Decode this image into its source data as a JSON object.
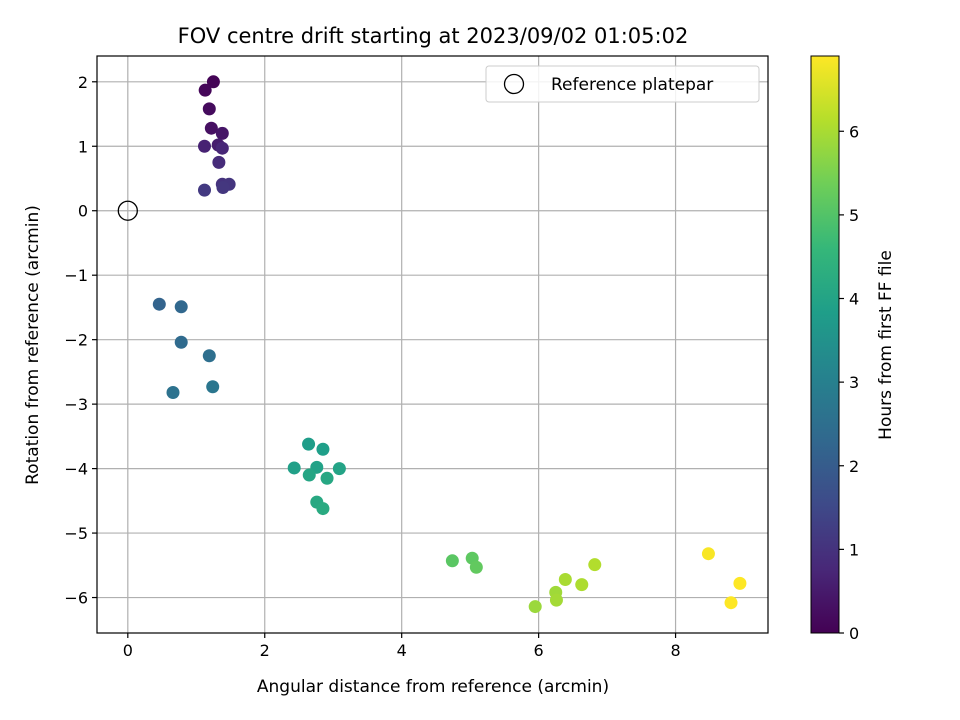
{
  "chart_data": {
    "type": "scatter",
    "title": "FOV centre drift starting at 2023/09/02 01:05:02",
    "xlabel": "Angular distance from reference (arcmin)",
    "ylabel": "Rotation from reference (arcmin)",
    "xlim": [
      -0.45,
      9.35
    ],
    "ylim": [
      -6.55,
      2.4
    ],
    "xticks": [
      0,
      2,
      4,
      6,
      8
    ],
    "yticks": [
      -6,
      -5,
      -4,
      -3,
      -2,
      -1,
      0,
      1,
      2
    ],
    "grid": true,
    "legend": {
      "position": "top-right",
      "entries": [
        "Reference platepar"
      ]
    },
    "reference_point": {
      "x": 0,
      "y": 0
    },
    "colorbar": {
      "label": "Hours from first FF file",
      "range": [
        0,
        6.9
      ],
      "ticks": [
        0,
        1,
        2,
        3,
        4,
        5,
        6
      ],
      "colormap": "viridis"
    },
    "points": [
      {
        "x": 1.25,
        "y": 2.0,
        "t": 0.05
      },
      {
        "x": 1.13,
        "y": 1.87,
        "t": 0.1
      },
      {
        "x": 1.19,
        "y": 1.58,
        "t": 0.2
      },
      {
        "x": 1.22,
        "y": 1.28,
        "t": 0.3
      },
      {
        "x": 1.38,
        "y": 1.2,
        "t": 0.4
      },
      {
        "x": 1.32,
        "y": 1.02,
        "t": 0.55
      },
      {
        "x": 1.12,
        "y": 1.0,
        "t": 0.65
      },
      {
        "x": 1.38,
        "y": 0.97,
        "t": 0.75
      },
      {
        "x": 1.33,
        "y": 0.75,
        "t": 0.85
      },
      {
        "x": 1.38,
        "y": 0.41,
        "t": 1.0
      },
      {
        "x": 1.48,
        "y": 0.41,
        "t": 1.05
      },
      {
        "x": 1.39,
        "y": 0.36,
        "t": 1.1
      },
      {
        "x": 1.12,
        "y": 0.32,
        "t": 1.15
      },
      {
        "x": 0.46,
        "y": -1.45,
        "t": 2.2
      },
      {
        "x": 0.78,
        "y": -1.49,
        "t": 2.3
      },
      {
        "x": 0.78,
        "y": -2.04,
        "t": 2.4
      },
      {
        "x": 1.19,
        "y": -2.25,
        "t": 2.5
      },
      {
        "x": 0.66,
        "y": -2.82,
        "t": 2.6
      },
      {
        "x": 1.24,
        "y": -2.73,
        "t": 2.7
      },
      {
        "x": 2.64,
        "y": -3.62,
        "t": 3.8
      },
      {
        "x": 2.85,
        "y": -3.7,
        "t": 3.85
      },
      {
        "x": 2.43,
        "y": -3.99,
        "t": 3.9
      },
      {
        "x": 2.76,
        "y": -3.98,
        "t": 3.95
      },
      {
        "x": 3.09,
        "y": -4.0,
        "t": 4.0
      },
      {
        "x": 2.65,
        "y": -4.1,
        "t": 4.05
      },
      {
        "x": 2.91,
        "y": -4.15,
        "t": 4.1
      },
      {
        "x": 2.76,
        "y": -4.52,
        "t": 4.15
      },
      {
        "x": 2.85,
        "y": -4.62,
        "t": 4.2
      },
      {
        "x": 4.74,
        "y": -5.43,
        "t": 5.1
      },
      {
        "x": 5.03,
        "y": -5.39,
        "t": 5.15
      },
      {
        "x": 5.09,
        "y": -5.53,
        "t": 5.2
      },
      {
        "x": 5.95,
        "y": -6.14,
        "t": 5.85
      },
      {
        "x": 6.25,
        "y": -5.92,
        "t": 5.9
      },
      {
        "x": 6.26,
        "y": -6.04,
        "t": 5.95
      },
      {
        "x": 6.39,
        "y": -5.72,
        "t": 6.0
      },
      {
        "x": 6.63,
        "y": -5.8,
        "t": 6.05
      },
      {
        "x": 6.82,
        "y": -5.49,
        "t": 6.1
      },
      {
        "x": 8.48,
        "y": -5.32,
        "t": 6.85
      },
      {
        "x": 8.94,
        "y": -5.78,
        "t": 6.9
      },
      {
        "x": 8.81,
        "y": -6.08,
        "t": 6.9
      }
    ]
  }
}
